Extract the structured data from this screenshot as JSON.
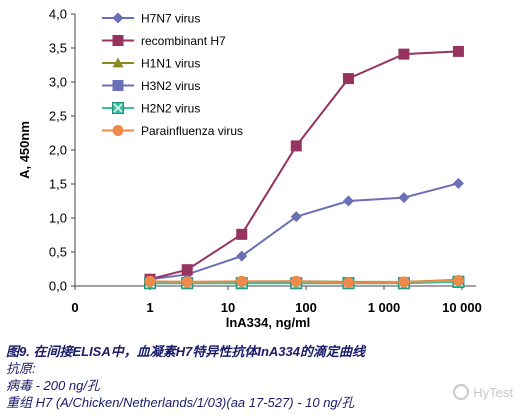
{
  "chart_data": {
    "type": "line",
    "title": "",
    "xlabel": "lnA334, ng/ml",
    "ylabel": "A, 450nm",
    "x_scale": "log",
    "x": [
      1,
      3,
      15,
      75,
      350,
      1800,
      9000
    ],
    "x_ticks": [
      {
        "value": 0,
        "label": "0"
      },
      {
        "value": 1,
        "label": "1"
      },
      {
        "value": 10,
        "label": "10"
      },
      {
        "value": 100,
        "label": "100"
      },
      {
        "value": 1000,
        "label": "1 000"
      },
      {
        "value": 10000,
        "label": "10 000"
      }
    ],
    "y_ticks": [
      "0,0",
      "0,5",
      "1,0",
      "1,5",
      "2,0",
      "2,5",
      "3,0",
      "3,5",
      "4,0"
    ],
    "ylim": [
      0,
      4
    ],
    "grid": false,
    "legend_position": "top-left",
    "series": [
      {
        "name": "H7N7 virus",
        "color": "#6b6fb5",
        "marker": "diamond",
        "values": [
          0.1,
          0.17,
          0.44,
          1.02,
          1.25,
          1.3,
          1.51
        ]
      },
      {
        "name": "recombinant H7",
        "color": "#96335f",
        "marker": "square",
        "values": [
          0.1,
          0.24,
          0.76,
          2.06,
          3.05,
          3.41,
          3.45
        ]
      },
      {
        "name": "H1N1 virus",
        "color": "#8a8a22",
        "marker": "triangle",
        "values": [
          0.06,
          0.06,
          0.06,
          0.07,
          0.06,
          0.06,
          0.09
        ]
      },
      {
        "name": "H3N2 virus",
        "color": "#6b6fb5",
        "marker": "square",
        "values": [
          0.05,
          0.05,
          0.05,
          0.05,
          0.05,
          0.05,
          0.07
        ]
      },
      {
        "name": "H2N2 virus",
        "color": "#38c0a2",
        "marker": "xsquare",
        "values": [
          0.04,
          0.04,
          0.04,
          0.04,
          0.04,
          0.04,
          0.06
        ]
      },
      {
        "name": "Parainfluenza virus",
        "color": "#f08a4a",
        "marker": "circle",
        "values": [
          0.07,
          0.06,
          0.07,
          0.07,
          0.05,
          0.06,
          0.08
        ]
      }
    ]
  },
  "caption": {
    "title": "图9. 在间接ELISA中，血凝素H7特异性抗体InA334的滴定曲线",
    "line1": "抗原:",
    "line2": "病毒 - 200 ng/孔",
    "line3": "重组 H7 (A/Chicken/Netherlands/1/03)(aa 17-527) - 10 ng/孔"
  },
  "watermark": {
    "text": "HyTest"
  }
}
